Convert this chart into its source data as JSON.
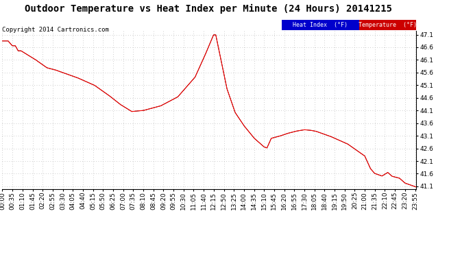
{
  "title": "Outdoor Temperature vs Heat Index per Minute (24 Hours) 20141215",
  "copyright_text": "Copyright 2014 Cartronics.com",
  "legend_heat_index": "Heat Index  (°F)",
  "legend_temperature": "Temperature  (°F)",
  "ylim": [
    41.0,
    47.25
  ],
  "yticks": [
    41.1,
    41.6,
    42.1,
    42.6,
    43.1,
    43.6,
    44.1,
    44.6,
    45.1,
    45.6,
    46.1,
    46.6,
    47.1
  ],
  "background_color": "#ffffff",
  "grid_color": "#bbbbbb",
  "temp_color": "#ff0000",
  "heat_index_color": "#000000",
  "title_fontsize": 10,
  "copyright_fontsize": 6.5,
  "axis_fontsize": 6.5,
  "legend_fontsize": 6,
  "heat_index_legend_bg": "#0000cc",
  "temp_legend_bg": "#cc0000"
}
